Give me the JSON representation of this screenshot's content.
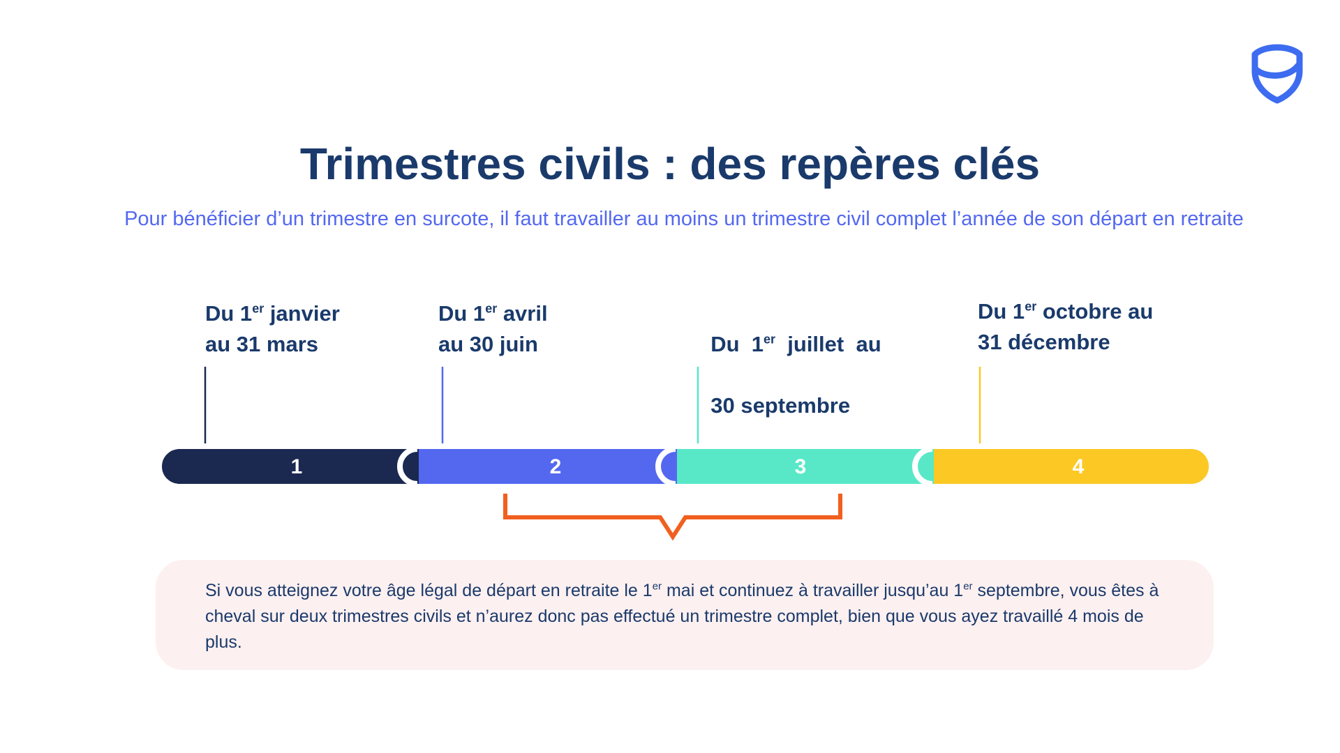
{
  "title": "Trimestres civils : des repères clés",
  "subtitle": "Pour bénéficier d’un trimestre en surcote, il faut travailler au moins un trimestre civil complet l’année de son départ en retraite",
  "logo": {
    "icon": "shield-icon",
    "color": "#3d6cf0"
  },
  "periods": [
    {
      "pre": "Du 1",
      "sup": "er",
      "post": " janvier",
      "line2": "au 31 mars",
      "color": "#1b2850"
    },
    {
      "pre": "Du 1",
      "sup": "er",
      "post": " avril",
      "line2": "au 30 juin",
      "color": "#5368ef"
    },
    {
      "pre": "Du  1",
      "sup": "er",
      "post": "  juillet  au",
      "line2": "30 septembre",
      "color": "#58e8c7"
    },
    {
      "pre": "Du 1",
      "sup": "er",
      "post": " octobre au",
      "line2": "31 décembre",
      "color": "#fcc824"
    }
  ],
  "segments": [
    {
      "label": "1",
      "color": "#1b2850"
    },
    {
      "label": "2",
      "color": "#5368ef"
    },
    {
      "label": "3",
      "color": "#58e8c7"
    },
    {
      "label": "4",
      "color": "#fcc824"
    }
  ],
  "bracket_color": "#f0601f",
  "note": {
    "part1": "Si vous atteignez votre âge légal de départ en retraite le 1",
    "sup1": "er",
    "part2": " mai et continuez à travailler jusqu’au 1",
    "sup2": "er",
    "part3": " septembre, vous êtes à cheval sur deux trimestres civils et n’aurez donc pas effectué un trimestre complet, bien que vous ayez travaillé 4 mois de plus.",
    "background": "#fdf0f0"
  }
}
